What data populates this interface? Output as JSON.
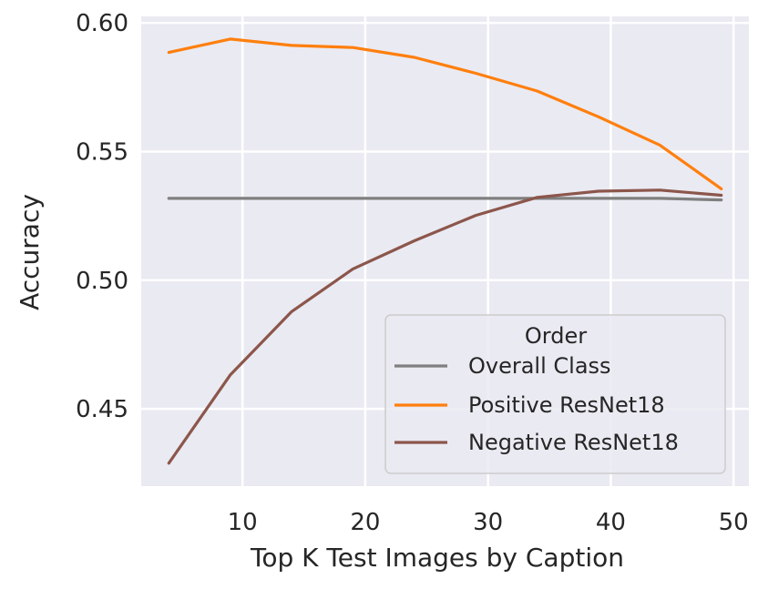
{
  "chart_data": {
    "type": "line",
    "xlabel": "Top K Test Images by Caption",
    "ylabel": "Accuracy",
    "xlim": [
      1.75,
      51.25
    ],
    "ylim": [
      0.42,
      0.6025
    ],
    "x_ticks": [
      10,
      20,
      30,
      40,
      50
    ],
    "x_tick_labels": [
      "10",
      "20",
      "30",
      "40",
      "50"
    ],
    "y_ticks": [
      0.45,
      0.5,
      0.55,
      0.6
    ],
    "y_tick_labels": [
      "0.45",
      "0.50",
      "0.55",
      "0.60"
    ],
    "grid": true,
    "background": "#eaeaf2",
    "legend": {
      "title": "Order",
      "placement": "lower-right"
    },
    "x": [
      4,
      9,
      14,
      19,
      24,
      29,
      34,
      39,
      44,
      49
    ],
    "series": [
      {
        "name": "Overall Class",
        "color": "#7f7f7f",
        "values": [
          0.5318,
          0.5318,
          0.5318,
          0.5318,
          0.5318,
          0.5318,
          0.5318,
          0.5318,
          0.5318,
          0.5312
        ]
      },
      {
        "name": "Positive ResNet18",
        "color": "#ff7f0e",
        "values": [
          0.5885,
          0.5937,
          0.5912,
          0.5904,
          0.5866,
          0.5804,
          0.5735,
          0.5635,
          0.5525,
          0.5355
        ]
      },
      {
        "name": "Negative ResNet18",
        "color": "#8c564b",
        "values": [
          0.4289,
          0.4632,
          0.4878,
          0.5044,
          0.5153,
          0.5252,
          0.5322,
          0.5346,
          0.535,
          0.533
        ]
      }
    ]
  }
}
